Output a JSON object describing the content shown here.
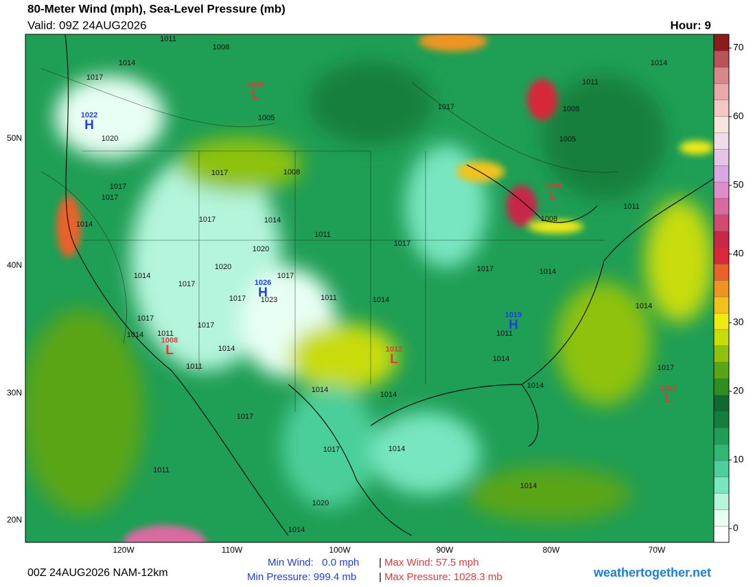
{
  "header": {
    "title": "80-Meter Wind (mph), Sea-Level Pressure (mb)",
    "valid": "Valid: 09Z 24AUG2026",
    "hour": "Hour: 9"
  },
  "colorbar": {
    "range": [
      -2,
      72
    ],
    "ticks": [
      0,
      10,
      20,
      30,
      40,
      50,
      60,
      70
    ],
    "colors": [
      "#ffffff",
      "#e8fff4",
      "#b4f5dc",
      "#78e6c0",
      "#4ccf9a",
      "#2fb874",
      "#1f9e55",
      "#137f3c",
      "#0e6a2e",
      "#2f8f1e",
      "#5aa514",
      "#8ec20c",
      "#c8dc0a",
      "#f0ea14",
      "#f2c21a",
      "#ee9420",
      "#e8622a",
      "#d8283a",
      "#c82848",
      "#d04a74",
      "#d86aa0",
      "#e08ccc",
      "#d8a8e0",
      "#e4c4e8",
      "#f0dcec",
      "#f8e4dc",
      "#f4c8c0",
      "#eaa8a8",
      "#d88888",
      "#b85458",
      "#8c1c1c"
    ]
  },
  "map": {
    "lon_labels": [
      "120W",
      "110W",
      "100W",
      "90W",
      "80W",
      "70W"
    ],
    "lat_labels": [
      "50N",
      "40N",
      "30N",
      "20N"
    ]
  },
  "pressure_labels": [
    "1011",
    "1008",
    "1014",
    "1017",
    "1005",
    "1020",
    "1017",
    "1008",
    "1017",
    "1017",
    "1014",
    "1017",
    "1014",
    "1011",
    "1020",
    "1020",
    "1014",
    "1017",
    "1023",
    "1017",
    "1017",
    "1011",
    "1014",
    "1017",
    "1017",
    "1014",
    "1017",
    "1014",
    "1011",
    "1008",
    "1005",
    "1008",
    "1011",
    "1014",
    "1011",
    "1017",
    "1011",
    "1014",
    "1011",
    "1014",
    "1017",
    "1014",
    "1014",
    "1017",
    "1014",
    "1014",
    "1017",
    "1017",
    "1014",
    "1011",
    "1020",
    "1014",
    "1014"
  ],
  "highs_lows": [
    {
      "letter": "L",
      "value": "1003"
    },
    {
      "letter": "H",
      "value": "1022"
    },
    {
      "letter": "H",
      "value": "1026"
    },
    {
      "letter": "L",
      "value": "1004"
    },
    {
      "letter": "H",
      "value": "1019"
    },
    {
      "letter": "L",
      "value": "1008"
    },
    {
      "letter": "L",
      "value": "1012"
    },
    {
      "letter": "L",
      "value": "1017"
    }
  ],
  "hl_colors": {
    "H": "#1f3fe0",
    "L": "#e03a3a"
  },
  "footer": {
    "run": "00Z 24AUG2026 NAM-12km",
    "min_wind": "Min Wind:   0.0 mph",
    "sep1": "|",
    "max_wind": "Max Wind: 57.5 mph",
    "min_pressure": "Min Pressure: 999.4 mb",
    "sep2": "|",
    "max_pressure": "Max Pressure: 1028.3 mb",
    "site": "weathertogether.net"
  }
}
